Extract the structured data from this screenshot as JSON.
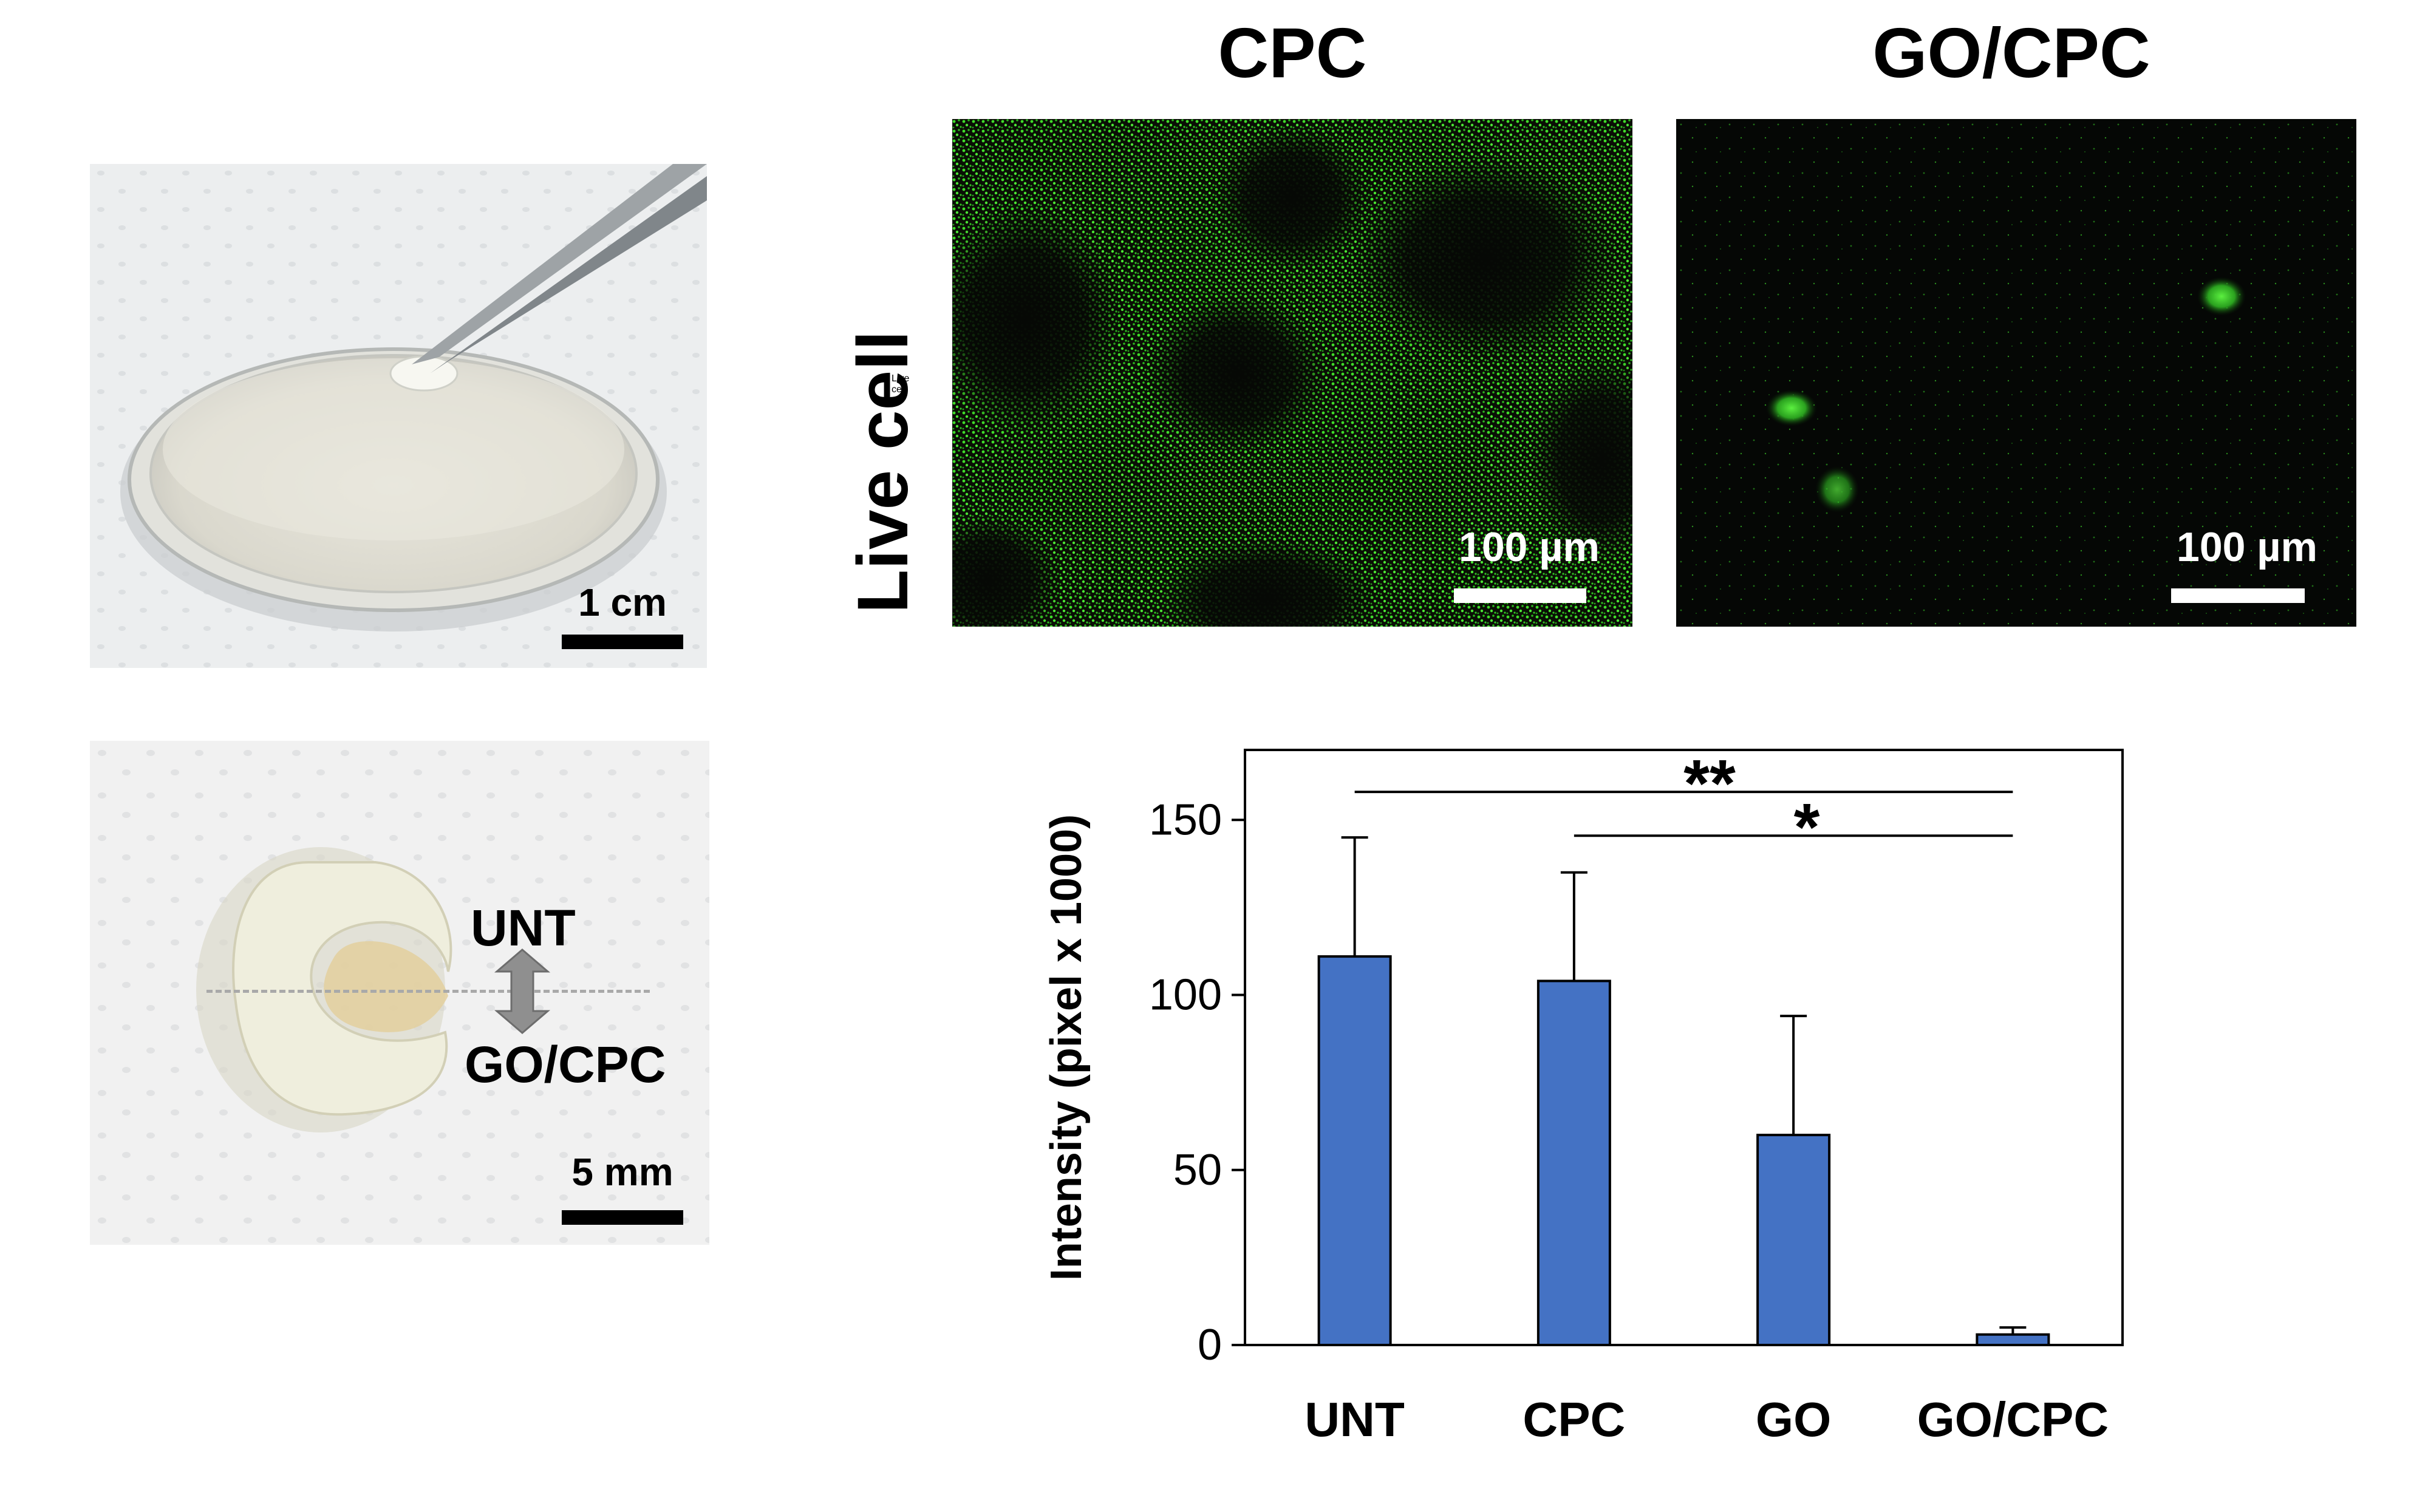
{
  "photos": {
    "dish": {
      "scale_label": "1 cm"
    },
    "tissue": {
      "scale_label": "5 mm",
      "label_top": "UNT",
      "label_bottom": "GO/CPC"
    }
  },
  "micrographs": {
    "row_label": "Live cell",
    "panels": [
      {
        "title": "CPC",
        "scale_label": "100 µm"
      },
      {
        "title": "GO/CPC",
        "scale_label": "100 µm"
      }
    ]
  },
  "chart_data": {
    "type": "bar",
    "categories": [
      "UNT",
      "CPC",
      "GO",
      "GO/CPC"
    ],
    "values": [
      111,
      104,
      60,
      3
    ],
    "errors": [
      34,
      31,
      34,
      2
    ],
    "ylabel": "Intensity (pixel x 1000)",
    "ylim": [
      0,
      170
    ],
    "yticks": [
      0,
      50,
      100,
      150
    ],
    "bar_color": "#4472C4",
    "grid": false,
    "significance": [
      {
        "from": "UNT",
        "to": "GO/CPC",
        "label": "**"
      },
      {
        "from": "CPC",
        "to": "GO/CPC",
        "label": "*"
      }
    ]
  }
}
